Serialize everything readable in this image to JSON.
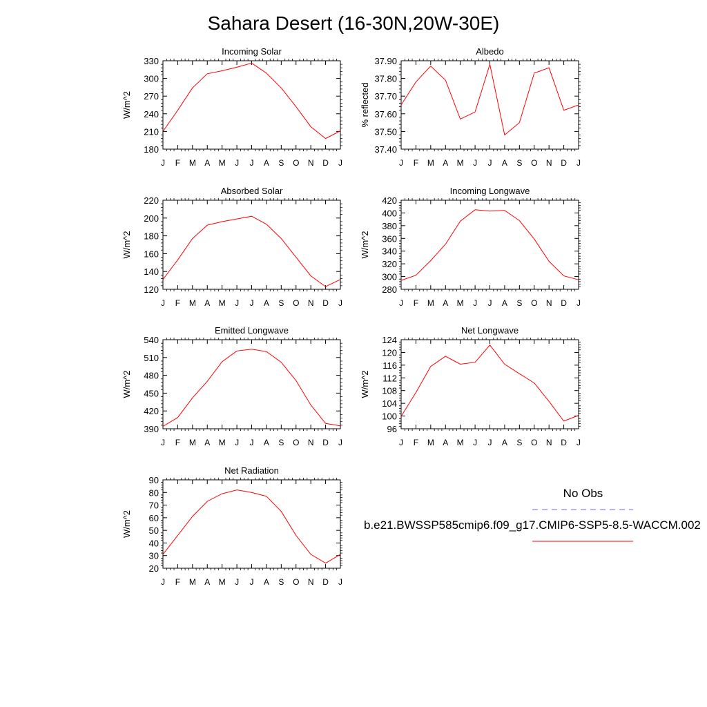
{
  "title": "Sahara Desert (16-30N,20W-30E)",
  "chart_data": [
    {
      "type": "line",
      "title": "Incoming Solar",
      "ylabel": "W/m^2",
      "categories": [
        "J",
        "F",
        "M",
        "A",
        "M",
        "J",
        "J",
        "A",
        "S",
        "O",
        "N",
        "D",
        "J"
      ],
      "yticks": [
        "180",
        "210",
        "240",
        "270",
        "300",
        "330"
      ],
      "ylim": [
        180,
        330
      ],
      "series": [
        {
          "values": [
            210,
            246,
            284,
            308,
            313,
            319,
            326,
            309,
            284,
            252,
            218,
            198,
            211
          ],
          "color": "#ff0000"
        }
      ]
    },
    {
      "type": "line",
      "title": "Albedo",
      "ylabel": "% reflected",
      "categories": [
        "J",
        "F",
        "M",
        "A",
        "M",
        "J",
        "J",
        "A",
        "S",
        "O",
        "N",
        "D",
        "J"
      ],
      "yticks": [
        "37.40",
        "37.50",
        "37.60",
        "37.70",
        "37.80",
        "37.90"
      ],
      "ylim": [
        37.4,
        37.9
      ],
      "series": [
        {
          "values": [
            37.65,
            37.78,
            37.87,
            37.79,
            37.57,
            37.61,
            37.88,
            37.48,
            37.55,
            37.83,
            37.86,
            37.62,
            37.65
          ],
          "color": "#ff0000"
        }
      ]
    },
    {
      "type": "line",
      "title": "Absorbed Solar",
      "ylabel": "W/m^2",
      "categories": [
        "J",
        "F",
        "M",
        "A",
        "M",
        "J",
        "J",
        "A",
        "S",
        "O",
        "N",
        "D",
        "J"
      ],
      "yticks": [
        "120",
        "140",
        "160",
        "180",
        "200",
        "220"
      ],
      "ylim": [
        120,
        220
      ],
      "series": [
        {
          "values": [
            131,
            153,
            177,
            192,
            196,
            199,
            202,
            193,
            177,
            156,
            135,
            123,
            131
          ],
          "color": "#ff0000"
        }
      ]
    },
    {
      "type": "line",
      "title": "Incoming Longwave",
      "ylabel": "W/m^2",
      "categories": [
        "J",
        "F",
        "M",
        "A",
        "M",
        "J",
        "J",
        "A",
        "S",
        "O",
        "N",
        "D",
        "J"
      ],
      "yticks": [
        "280",
        "300",
        "320",
        "340",
        "360",
        "380",
        "400",
        "420"
      ],
      "ylim": [
        280,
        420
      ],
      "series": [
        {
          "values": [
            294,
            302,
            325,
            351,
            387,
            405,
            403,
            404,
            388,
            359,
            324,
            301,
            295
          ],
          "color": "#ff0000"
        }
      ]
    },
    {
      "type": "line",
      "title": "Emitted Longwave",
      "ylabel": "W/m^2",
      "categories": [
        "J",
        "F",
        "M",
        "A",
        "M",
        "J",
        "J",
        "A",
        "S",
        "O",
        "N",
        "D",
        "J"
      ],
      "yticks": [
        "390",
        "420",
        "450",
        "480",
        "510",
        "540"
      ],
      "ylim": [
        390,
        540
      ],
      "series": [
        {
          "values": [
            394,
            409,
            442,
            470,
            503,
            521,
            524,
            520,
            502,
            471,
            430,
            399,
            395
          ],
          "color": "#ff0000"
        }
      ]
    },
    {
      "type": "line",
      "title": "Net Longwave",
      "ylabel": "W/m^2",
      "categories": [
        "J",
        "F",
        "M",
        "A",
        "M",
        "J",
        "J",
        "A",
        "S",
        "O",
        "N",
        "D",
        "J"
      ],
      "yticks": [
        "96",
        "100",
        "104",
        "108",
        "112",
        "116",
        "120",
        "124"
      ],
      "ylim": [
        96,
        124
      ],
      "series": [
        {
          "values": [
            99.9,
            107.4,
            115.6,
            118.8,
            116.3,
            116.9,
            122.3,
            116.3,
            113.3,
            110.4,
            104.6,
            98.4,
            100.2
          ],
          "color": "#ff0000"
        }
      ]
    },
    {
      "type": "line",
      "title": "Net Radiation",
      "ylabel": "W/m^2",
      "categories": [
        "J",
        "F",
        "M",
        "A",
        "M",
        "J",
        "J",
        "A",
        "S",
        "O",
        "N",
        "D",
        "J"
      ],
      "yticks": [
        "20",
        "30",
        "40",
        "50",
        "60",
        "70",
        "80",
        "90"
      ],
      "ylim": [
        20,
        90
      ],
      "series": [
        {
          "values": [
            31,
            46,
            61,
            73,
            79,
            82,
            80,
            77,
            65,
            46,
            31,
            24,
            31
          ],
          "color": "#ff0000"
        }
      ]
    }
  ],
  "legend": {
    "obs_label": "No Obs",
    "obs_color": "#6666ff",
    "case_label": "b.e21.BWSSP585cmip6.f09_g17.CMIP6-SSP5-8.5-WACCM.002",
    "case_color": "#ff0000"
  }
}
